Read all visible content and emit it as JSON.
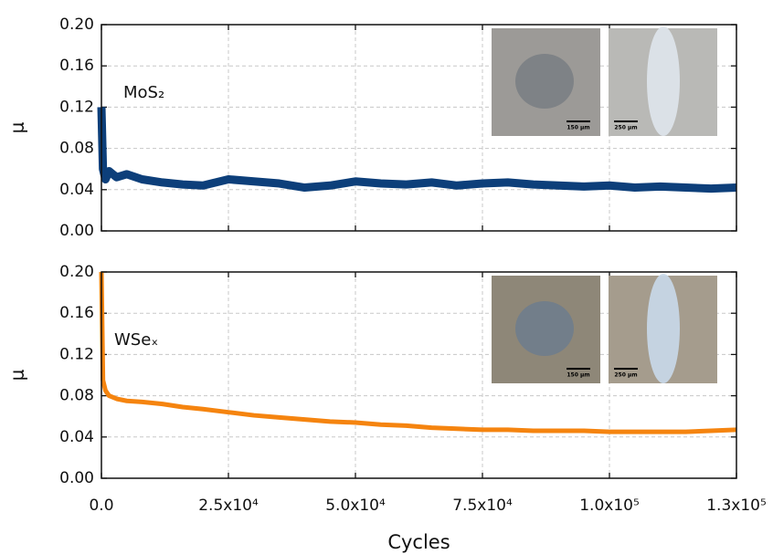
{
  "chart_data": [
    {
      "type": "line",
      "title": "MoS₂",
      "y_label": "μ",
      "xlim": [
        0,
        125000
      ],
      "ylim": [
        0,
        0.2
      ],
      "yticks": [
        {
          "value": 0,
          "label": "0.00"
        },
        {
          "value": 0.04,
          "label": "0.04"
        },
        {
          "value": 0.08,
          "label": "0.08"
        },
        {
          "value": 0.12,
          "label": "0.12"
        },
        {
          "value": 0.16,
          "label": "0.16"
        },
        {
          "value": 0.2,
          "label": "0.20"
        }
      ],
      "grid": true,
      "x": [
        0,
        300,
        800,
        1500,
        3000,
        5000,
        8000,
        12000,
        16000,
        20000,
        25000,
        30000,
        35000,
        40000,
        45000,
        50000,
        55000,
        60000,
        65000,
        70000,
        75000,
        80000,
        85000,
        90000,
        95000,
        100000,
        105000,
        110000,
        115000,
        120000,
        125000
      ],
      "series": [
        {
          "color": "#0d3f7a",
          "values": [
            0.12,
            0.06,
            0.05,
            0.058,
            0.052,
            0.055,
            0.05,
            0.047,
            0.045,
            0.044,
            0.05,
            0.048,
            0.046,
            0.042,
            0.044,
            0.048,
            0.046,
            0.045,
            0.047,
            0.044,
            0.046,
            0.047,
            0.045,
            0.044,
            0.043,
            0.044,
            0.042,
            0.043,
            0.042,
            0.041,
            0.042
          ]
        }
      ],
      "insets": [
        {
          "scale": "150 μm"
        },
        {
          "scale": "250 μm"
        }
      ]
    },
    {
      "type": "line",
      "title": "WSeₓ",
      "y_label": "μ",
      "x_label": "Cycles",
      "xlim": [
        0,
        125000
      ],
      "xticks": [
        {
          "value": 0,
          "label": "0.0"
        },
        {
          "value": 25000,
          "label": "2.5x10⁴"
        },
        {
          "value": 50000,
          "label": "5.0x10⁴"
        },
        {
          "value": 75000,
          "label": "7.5x10⁴"
        },
        {
          "value": 100000,
          "label": "1.0x10⁵"
        },
        {
          "value": 125000,
          "label": "1.3x10⁵"
        }
      ],
      "ylim": [
        0,
        0.2
      ],
      "yticks": [
        {
          "value": 0,
          "label": "0.00"
        },
        {
          "value": 0.04,
          "label": "0.04"
        },
        {
          "value": 0.08,
          "label": "0.08"
        },
        {
          "value": 0.12,
          "label": "0.12"
        },
        {
          "value": 0.16,
          "label": "0.16"
        },
        {
          "value": 0.2,
          "label": "0.20"
        }
      ],
      "grid": true,
      "x": [
        0,
        300,
        800,
        1500,
        3000,
        5000,
        8000,
        12000,
        16000,
        20000,
        25000,
        30000,
        35000,
        40000,
        45000,
        50000,
        55000,
        60000,
        65000,
        70000,
        75000,
        80000,
        85000,
        90000,
        95000,
        100000,
        105000,
        110000,
        115000,
        120000,
        125000
      ],
      "series": [
        {
          "color": "#f5840f",
          "values": [
            0.2,
            0.095,
            0.085,
            0.08,
            0.077,
            0.075,
            0.074,
            0.072,
            0.069,
            0.067,
            0.064,
            0.061,
            0.059,
            0.057,
            0.055,
            0.054,
            0.052,
            0.051,
            0.049,
            0.048,
            0.047,
            0.047,
            0.046,
            0.046,
            0.046,
            0.045,
            0.045,
            0.045,
            0.045,
            0.046,
            0.047
          ]
        }
      ],
      "insets": [
        {
          "scale": "150 μm"
        },
        {
          "scale": "250 μm"
        }
      ]
    }
  ]
}
